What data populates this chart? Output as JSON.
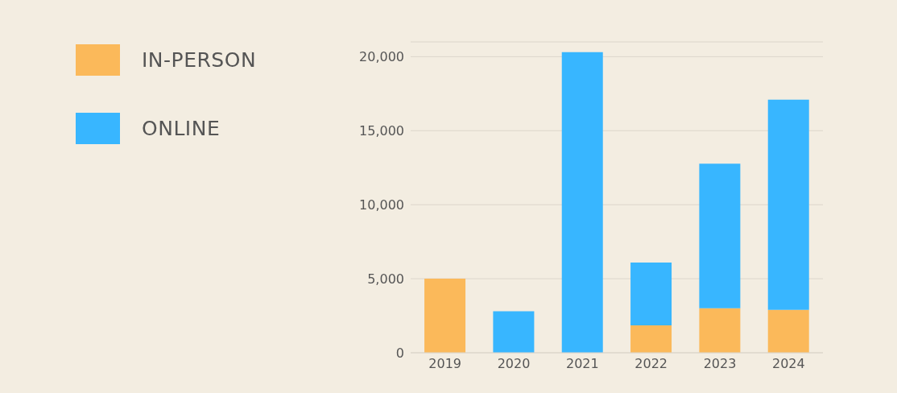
{
  "chart_data": {
    "type": "bar",
    "stacked": true,
    "categories": [
      "2019",
      "2020",
      "2021",
      "2022",
      "2023",
      "2024"
    ],
    "series": [
      {
        "name": "IN-PERSON",
        "color": "#fbb95a",
        "values": [
          5000,
          null,
          null,
          1850,
          3000,
          2900
        ]
      },
      {
        "name": "ONLINE",
        "color": "#38b6ff",
        "values": [
          null,
          2800,
          20300,
          4250,
          9770,
          14200
        ]
      }
    ],
    "ylim": [
      0,
      21000
    ],
    "yticks": [
      {
        "value": 0,
        "label": "0"
      },
      {
        "value": 5000,
        "label": "5,000"
      },
      {
        "value": 10000,
        "label": "10,000"
      },
      {
        "value": 15000,
        "label": "15,000"
      },
      {
        "value": 20000,
        "label": "20,000"
      }
    ],
    "grid": "y",
    "legend": "top left"
  }
}
